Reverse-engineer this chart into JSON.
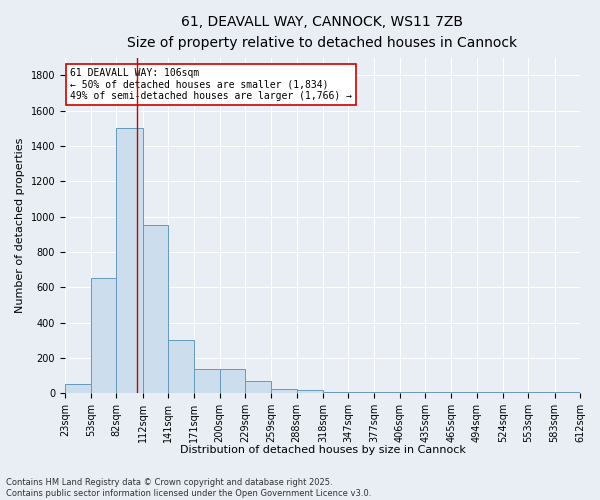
{
  "title_line1": "61, DEAVALL WAY, CANNOCK, WS11 7ZB",
  "title_line2": "Size of property relative to detached houses in Cannock",
  "xlabel": "Distribution of detached houses by size in Cannock",
  "ylabel": "Number of detached properties",
  "bins": [
    23,
    53,
    82,
    112,
    141,
    171,
    200,
    229,
    259,
    288,
    318,
    347,
    377,
    406,
    435,
    465,
    494,
    524,
    553,
    583,
    612
  ],
  "bar_heights": [
    50,
    650,
    1500,
    950,
    300,
    135,
    135,
    70,
    25,
    15,
    5,
    5,
    5,
    5,
    5,
    5,
    5,
    5,
    5,
    5
  ],
  "bar_color": "#ccdded",
  "bar_edge_color": "#6699bb",
  "red_line_x": 106,
  "annotation_text": "61 DEAVALL WAY: 106sqm\n← 50% of detached houses are smaller (1,834)\n49% of semi-detached houses are larger (1,766) →",
  "annotation_box_color": "#ffffff",
  "annotation_box_edge_color": "#cc0000",
  "annotation_text_color": "#000000",
  "red_line_color": "#cc0000",
  "ylim": [
    0,
    1900
  ],
  "yticks": [
    0,
    200,
    400,
    600,
    800,
    1000,
    1200,
    1400,
    1600,
    1800
  ],
  "bg_color": "#e8eef4",
  "plot_bg_color": "#e8eef4",
  "grid_color": "#ffffff",
  "footnote": "Contains HM Land Registry data © Crown copyright and database right 2025.\nContains public sector information licensed under the Open Government Licence v3.0.",
  "title_fontsize": 10,
  "subtitle_fontsize": 9,
  "axis_label_fontsize": 8,
  "tick_fontsize": 7,
  "annotation_fontsize": 7,
  "footnote_fontsize": 6
}
